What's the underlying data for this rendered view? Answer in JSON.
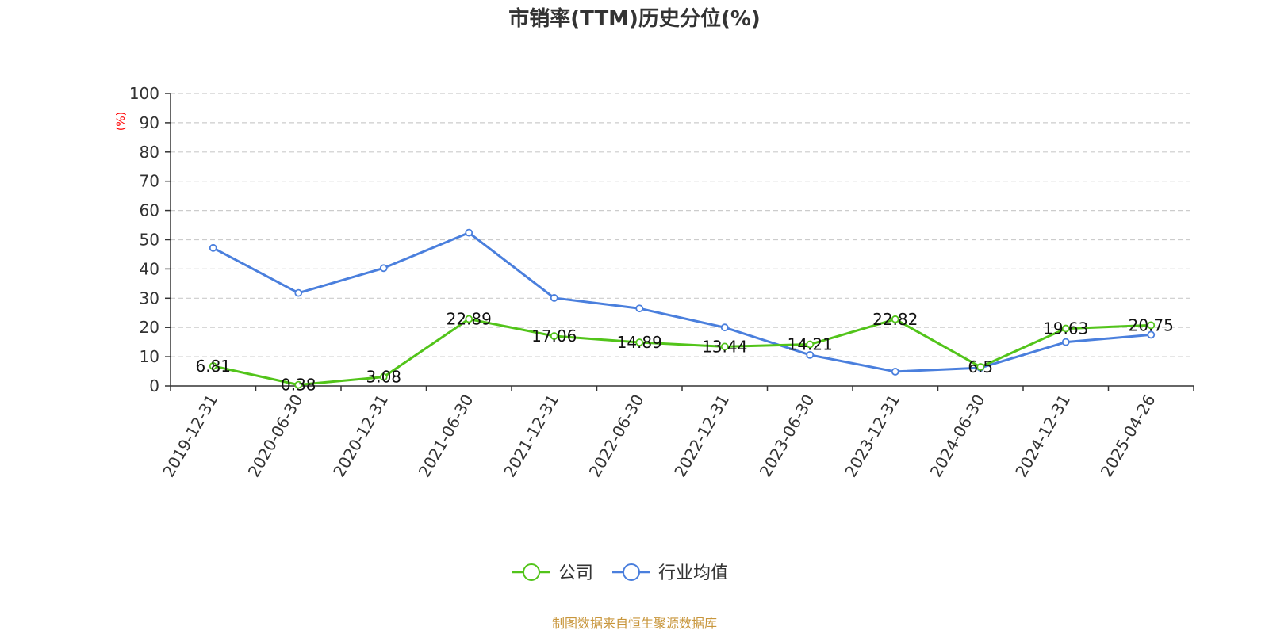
{
  "chart_data": {
    "type": "line",
    "title": "市销率(TTM)历史分位(%)",
    "ylabel": "(%)",
    "ylim": [
      0,
      100
    ],
    "yticks": [
      0,
      10,
      20,
      30,
      40,
      50,
      60,
      70,
      80,
      90,
      100
    ],
    "grid": true,
    "legend_position": "bottom",
    "categories": [
      "2019-12-31",
      "2020-06-30",
      "2020-12-31",
      "2021-06-30",
      "2021-12-31",
      "2022-06-30",
      "2022-12-31",
      "2023-06-30",
      "2023-12-31",
      "2024-06-30",
      "2024-12-31",
      "2025-04-26"
    ],
    "series": [
      {
        "name": "公司",
        "color": "#52c41a",
        "values": [
          6.81,
          0.38,
          3.08,
          22.89,
          17.06,
          14.89,
          13.44,
          14.21,
          22.82,
          6.5,
          19.63,
          20.75
        ],
        "labels": [
          "6.81",
          "0.38",
          "3.08",
          "22.89",
          "17.06",
          "14.89",
          "13.44",
          "14.21",
          "22.82",
          "6.5",
          "19.63",
          "20.75"
        ]
      },
      {
        "name": "行业均值",
        "color": "#4a7fdd",
        "values": [
          47.2,
          31.8,
          40.3,
          52.4,
          30.1,
          26.5,
          20.0,
          10.6,
          4.9,
          6.2,
          15.0,
          17.5
        ]
      }
    ],
    "source": "制图数据来自恒生聚源数据库"
  }
}
